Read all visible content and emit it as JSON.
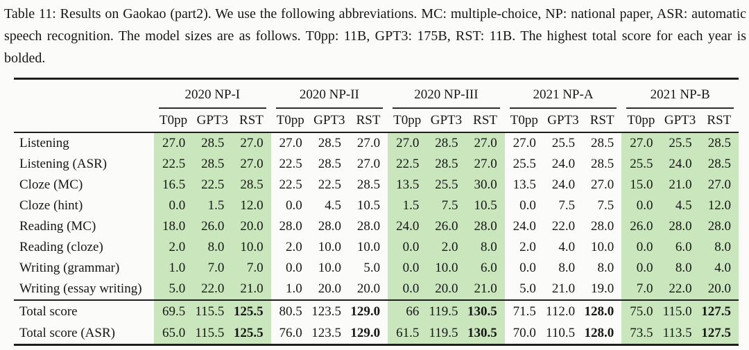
{
  "caption": "Table 11: Results on Gaokao (part2). We use the following abbreviations. MC: multiple-choice, NP: national paper, ASR: automatic speech recognition. The model sizes are as follows. T0pp: 11B, GPT3: 175B, RST: 11B. The highest total score for each year is bolded.",
  "table": {
    "highlight_color": "#cae6bc",
    "groups": [
      {
        "label": "2020 NP-I",
        "highlight": true
      },
      {
        "label": "2020 NP-II",
        "highlight": false
      },
      {
        "label": "2020 NP-III",
        "highlight": true
      },
      {
        "label": "2021 NP-A",
        "highlight": false
      },
      {
        "label": "2021 NP-B",
        "highlight": true
      }
    ],
    "subcolumns": [
      "T0pp",
      "GPT3",
      "RST"
    ],
    "rows": [
      {
        "label": "Listening",
        "values": [
          "27.0",
          "28.5",
          "27.0",
          "27.0",
          "28.5",
          "27.0",
          "27.0",
          "28.5",
          "27.0",
          "27.0",
          "25.5",
          "28.5",
          "27.0",
          "25.5",
          "28.5"
        ]
      },
      {
        "label": "Listening (ASR)",
        "values": [
          "22.5",
          "28.5",
          "27.0",
          "22.5",
          "28.5",
          "27.0",
          "22.5",
          "28.5",
          "27.0",
          "25.5",
          "24.0",
          "28.5",
          "25.5",
          "24.0",
          "28.5"
        ]
      },
      {
        "label": "Cloze (MC)",
        "values": [
          "16.5",
          "22.5",
          "28.5",
          "22.5",
          "22.5",
          "28.5",
          "13.5",
          "25.5",
          "30.0",
          "13.5",
          "24.0",
          "27.0",
          "15.0",
          "21.0",
          "27.0"
        ]
      },
      {
        "label": "Cloze (hint)",
        "values": [
          "0.0",
          "1.5",
          "12.0",
          "0.0",
          "4.5",
          "10.5",
          "1.5",
          "7.5",
          "10.5",
          "0.0",
          "7.5",
          "7.5",
          "0.0",
          "4.5",
          "12.0"
        ]
      },
      {
        "label": "Reading (MC)",
        "values": [
          "18.0",
          "26.0",
          "20.0",
          "28.0",
          "28.0",
          "28.0",
          "24.0",
          "26.0",
          "28.0",
          "24.0",
          "22.0",
          "28.0",
          "26.0",
          "28.0",
          "28.0"
        ]
      },
      {
        "label": "Reading (cloze)",
        "values": [
          "2.0",
          "8.0",
          "10.0",
          "2.0",
          "10.0",
          "10.0",
          "0.0",
          "2.0",
          "8.0",
          "2.0",
          "4.0",
          "10.0",
          "0.0",
          "6.0",
          "8.0"
        ]
      },
      {
        "label": "Writing (grammar)",
        "values": [
          "1.0",
          "7.0",
          "7.0",
          "0.0",
          "10.0",
          "5.0",
          "0.0",
          "10.0",
          "6.0",
          "0.0",
          "8.0",
          "8.0",
          "0.0",
          "8.0",
          "4.0"
        ]
      },
      {
        "label": "Writing (essay writing)",
        "values": [
          "5.0",
          "22.0",
          "21.0",
          "1.0",
          "20.0",
          "20.0",
          "0.0",
          "20.0",
          "21.0",
          "5.0",
          "21.0",
          "19.0",
          "7.0",
          "22.0",
          "20.0"
        ]
      }
    ],
    "total_rows": [
      {
        "label": "Total score",
        "values": [
          "69.5",
          "115.5",
          "125.5",
          "80.5",
          "123.5",
          "129.0",
          "66",
          "119.5",
          "130.5",
          "71.5",
          "112.0",
          "128.0",
          "75.0",
          "115.0",
          "127.5"
        ],
        "bold": [
          2,
          5,
          8,
          11,
          14
        ]
      },
      {
        "label": "Total score (ASR)",
        "values": [
          "65.0",
          "115.5",
          "125.5",
          "76.0",
          "123.5",
          "129.0",
          "61.5",
          "119.5",
          "130.5",
          "70.0",
          "110.5",
          "128.0",
          "73.5",
          "113.5",
          "127.5"
        ],
        "bold": [
          2,
          5,
          8,
          11,
          14
        ]
      }
    ]
  }
}
